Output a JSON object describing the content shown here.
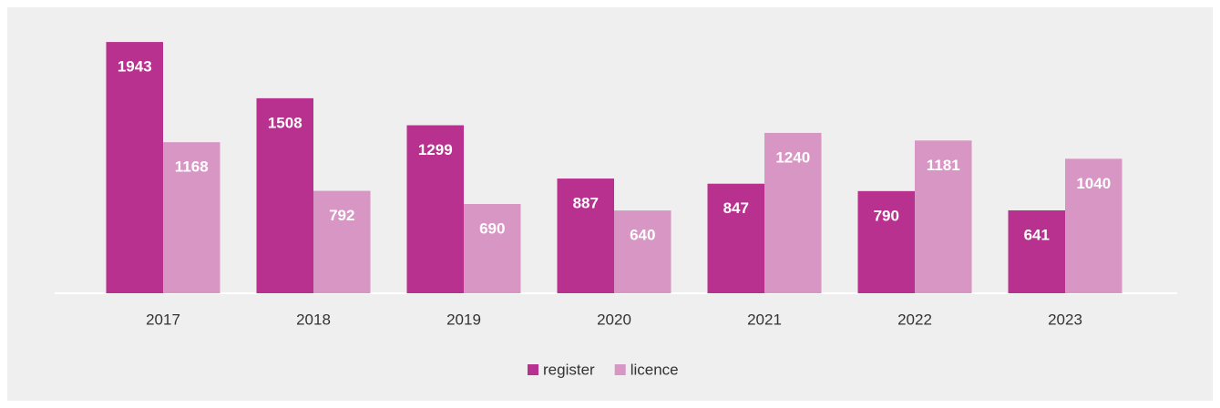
{
  "chart_data": {
    "type": "bar",
    "categories": [
      "2017",
      "2018",
      "2019",
      "2020",
      "2021",
      "2022",
      "2023"
    ],
    "series": [
      {
        "name": "register",
        "color": "#b9318f",
        "values": [
          1943,
          1508,
          1299,
          887,
          847,
          790,
          641
        ]
      },
      {
        "name": "licence",
        "color": "#d796c3",
        "values": [
          1168,
          792,
          690,
          640,
          1240,
          1181,
          1040
        ]
      }
    ],
    "ylim": [
      0,
      2000
    ],
    "legend": "bottom"
  }
}
